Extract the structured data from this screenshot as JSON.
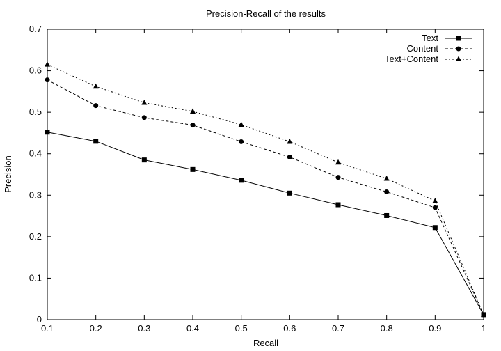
{
  "chart_data": {
    "type": "line",
    "title": "Precision-Recall of the results",
    "xlabel": "Recall",
    "ylabel": "Precision",
    "xlim": [
      0.1,
      1
    ],
    "ylim": [
      0,
      0.7
    ],
    "x_ticks": [
      "0.1",
      "0.2",
      "0.3",
      "0.4",
      "0.5",
      "0.6",
      "0.7",
      "0.8",
      "0.9",
      "1"
    ],
    "y_ticks": [
      "0",
      "0.1",
      "0.2",
      "0.3",
      "0.4",
      "0.5",
      "0.6",
      "0.7"
    ],
    "x": [
      0.1,
      0.2,
      0.3,
      0.4,
      0.5,
      0.6,
      0.7,
      0.8,
      0.9,
      1.0
    ],
    "legend_position": "top-right",
    "grid": false,
    "series": [
      {
        "name": "Text",
        "marker": "square",
        "dash": "solid",
        "values": [
          0.452,
          0.43,
          0.385,
          0.362,
          0.336,
          0.305,
          0.277,
          0.251,
          0.222,
          0.012
        ]
      },
      {
        "name": "Content",
        "marker": "circle",
        "dash": "dashed",
        "values": [
          0.578,
          0.516,
          0.487,
          0.469,
          0.429,
          0.392,
          0.343,
          0.308,
          0.27,
          0.012
        ]
      },
      {
        "name": "Text+Content",
        "marker": "triangle",
        "dash": "dotted",
        "values": [
          0.615,
          0.562,
          0.523,
          0.502,
          0.47,
          0.429,
          0.379,
          0.34,
          0.286,
          0.012
        ]
      }
    ]
  }
}
